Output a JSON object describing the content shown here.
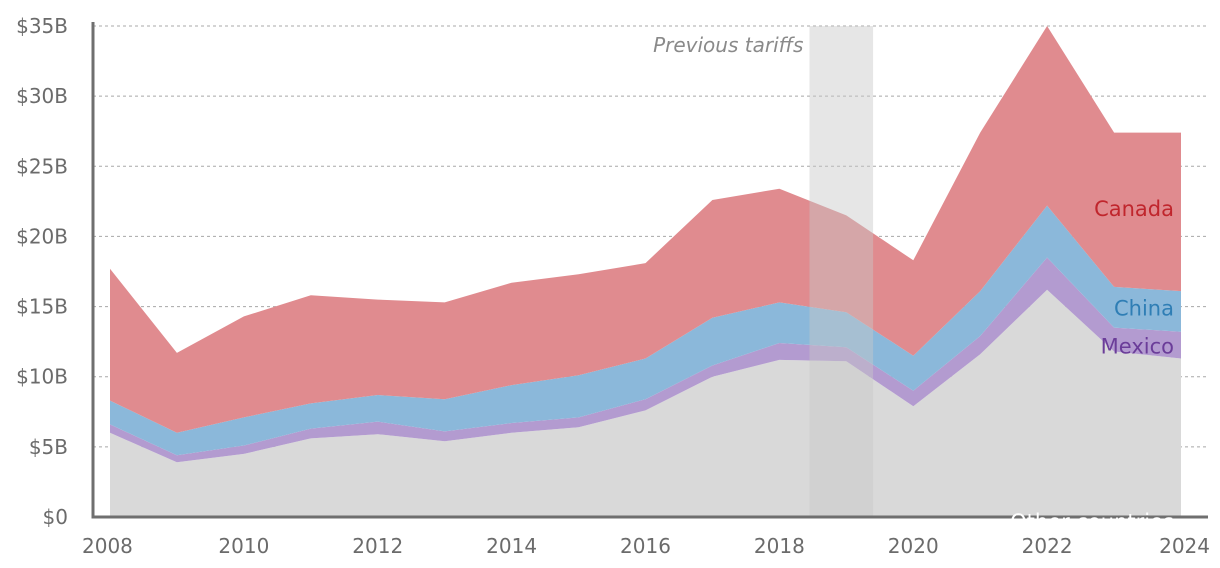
{
  "chart_data": {
    "type": "area",
    "stacked": true,
    "title": "",
    "xlabel": "",
    "ylabel": "",
    "x": [
      2008,
      2009,
      2010,
      2011,
      2012,
      2013,
      2014,
      2015,
      2016,
      2017,
      2018,
      2019,
      2020,
      2021,
      2022,
      2023,
      2024
    ],
    "ylim": [
      0,
      35
    ],
    "xlim": [
      2008,
      2024
    ],
    "y_ticks": [
      {
        "value": 0,
        "label": "$0"
      },
      {
        "value": 5,
        "label": "$5B"
      },
      {
        "value": 10,
        "label": "$10B"
      },
      {
        "value": 15,
        "label": "$15B"
      },
      {
        "value": 20,
        "label": "$20B"
      },
      {
        "value": 25,
        "label": "$25B"
      },
      {
        "value": 30,
        "label": "$30B"
      },
      {
        "value": 35,
        "label": "$35B"
      }
    ],
    "x_ticks": [
      {
        "value": 2008,
        "label": "2008"
      },
      {
        "value": 2010,
        "label": "2010"
      },
      {
        "value": 2012,
        "label": "2012"
      },
      {
        "value": 2014,
        "label": "2014"
      },
      {
        "value": 2016,
        "label": "2016"
      },
      {
        "value": 2018,
        "label": "2018"
      },
      {
        "value": 2020,
        "label": "2020"
      },
      {
        "value": 2022,
        "label": "2022"
      },
      {
        "value": 2024,
        "label": "2024"
      }
    ],
    "grid": true,
    "series": [
      {
        "name": "Other countries",
        "label": "Other countries",
        "color": "#d9d9d9",
        "label_color": "#ffffff",
        "values": [
          6.0,
          3.9,
          4.5,
          5.6,
          5.9,
          5.4,
          6.0,
          6.4,
          7.6,
          10.0,
          11.2,
          11.1,
          7.9,
          11.6,
          16.2,
          11.8,
          11.3
        ]
      },
      {
        "name": "Mexico",
        "label": "Mexico",
        "color": "#b39bd0",
        "label_color": "#6b3d99",
        "values": [
          0.6,
          0.5,
          0.6,
          0.7,
          0.9,
          0.7,
          0.7,
          0.7,
          0.8,
          0.8,
          1.2,
          1.0,
          1.1,
          1.3,
          2.3,
          1.7,
          1.9
        ]
      },
      {
        "name": "China",
        "label": "China",
        "color": "#8bb8da",
        "label_color": "#2f7eb5",
        "values": [
          1.7,
          1.6,
          2.0,
          1.8,
          1.9,
          2.3,
          2.7,
          3.0,
          2.9,
          3.4,
          2.9,
          2.5,
          2.5,
          3.2,
          3.7,
          2.9,
          2.9
        ]
      },
      {
        "name": "Canada",
        "label": "Canada",
        "color": "#e08b8f",
        "label_color": "#c0262d",
        "values": [
          9.4,
          5.7,
          7.2,
          7.7,
          6.8,
          6.9,
          7.3,
          7.2,
          6.8,
          8.4,
          8.1,
          6.9,
          6.8,
          11.3,
          12.8,
          11.0,
          11.3
        ]
      }
    ],
    "annotations": [
      {
        "type": "band",
        "label": "Previous tariffs",
        "x_start": 2018.45,
        "x_end": 2019.4,
        "color": "#c8c8c8"
      }
    ]
  }
}
